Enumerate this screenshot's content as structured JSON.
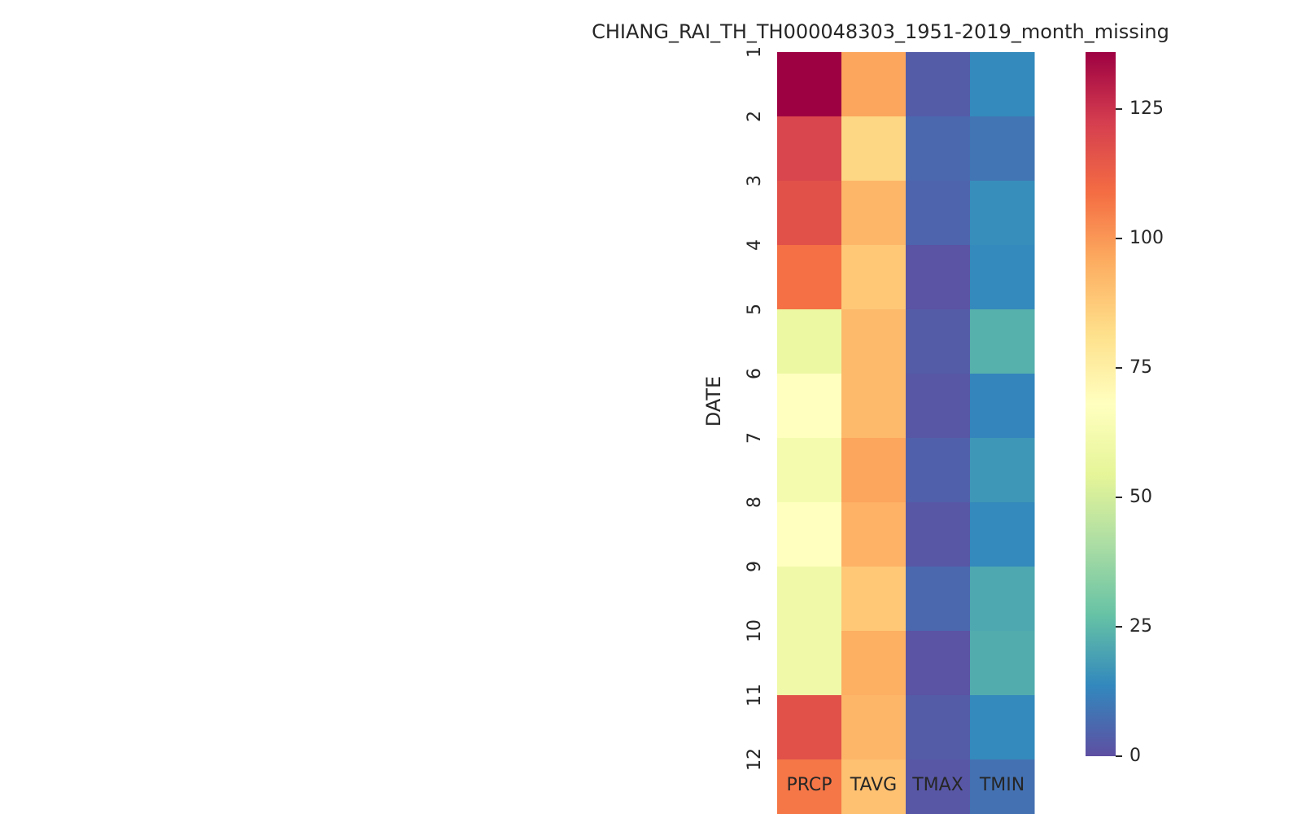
{
  "chart_data": {
    "type": "heatmap",
    "title": "CHIANG_RAI_TH_TH000048303_1951-2019_month_missing",
    "ylabel": "DATE",
    "xlabel": "",
    "columns": [
      "PRCP",
      "TAVG",
      "TMAX",
      "TMIN"
    ],
    "rows": [
      "1",
      "2",
      "3",
      "4",
      "5",
      "6",
      "7",
      "8",
      "9",
      "10",
      "11",
      "12"
    ],
    "values": [
      [
        136,
        97,
        3,
        14
      ],
      [
        120,
        84,
        6,
        9
      ],
      [
        117,
        93,
        5,
        15
      ],
      [
        108,
        88,
        1,
        14
      ],
      [
        58,
        92,
        3,
        23
      ],
      [
        68,
        92,
        2,
        13
      ],
      [
        62,
        97,
        4,
        17
      ],
      [
        68,
        94,
        2,
        14
      ],
      [
        60,
        88,
        6,
        21
      ],
      [
        60,
        95,
        1,
        22
      ],
      [
        117,
        93,
        3,
        14
      ],
      [
        107,
        90,
        2,
        8
      ]
    ],
    "colorbar": {
      "min": 0,
      "max": 136,
      "ticks": [
        0,
        25,
        50,
        75,
        100,
        125
      ],
      "colormap": "Spectral_r"
    },
    "grid": false
  }
}
